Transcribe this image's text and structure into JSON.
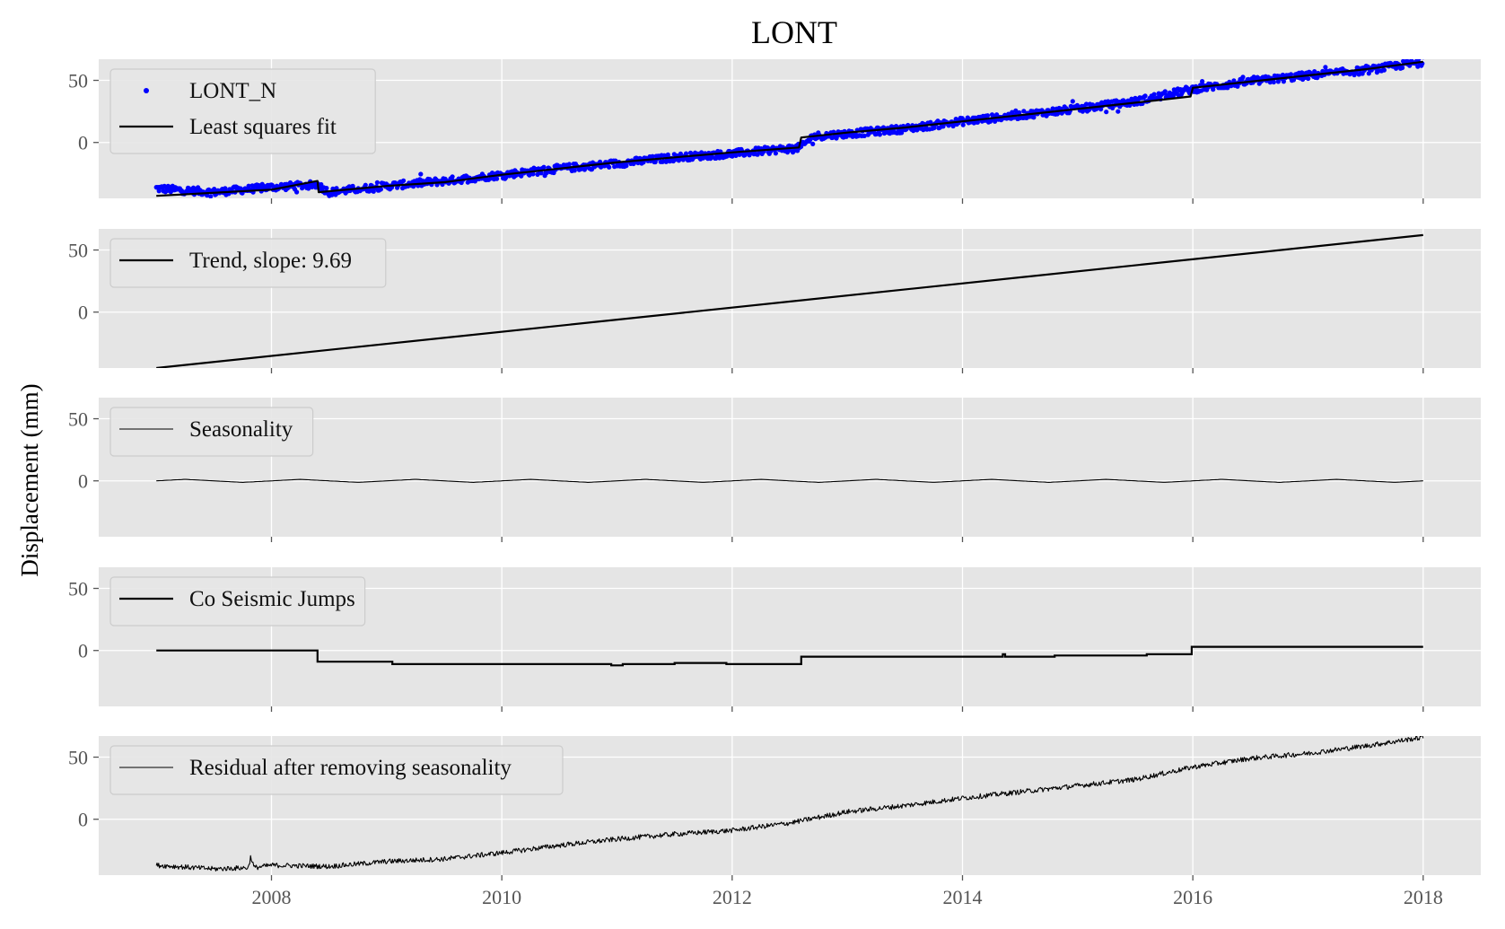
{
  "chart_data": {
    "type": "line",
    "title": "LONT",
    "ylabel": "Displacement (mm)",
    "xlim": [
      2006.5,
      2018.5
    ],
    "ylim": [
      -45,
      67
    ],
    "x_ticks": [
      2008,
      2010,
      2012,
      2014,
      2016,
      2018
    ],
    "x_tick_labels": [
      "2008",
      "2010",
      "2012",
      "2014",
      "2016",
      "2018"
    ],
    "y_ticks": [
      0,
      50
    ],
    "y_tick_labels": [
      "0",
      "50"
    ],
    "grid": true,
    "legend_position": "upper-left",
    "colors": {
      "background": "#e5e5e5",
      "grid": "#ffffff",
      "line": "#000000",
      "points": "#0000ff"
    },
    "panels": [
      {
        "legend": [
          {
            "label": "LONT_N",
            "marker": "dot",
            "color": "#0000ff"
          },
          {
            "label": "Least squares fit",
            "marker": "line",
            "color": "#000000"
          }
        ],
        "series": [
          {
            "name": "LONT_N",
            "style": "scatter",
            "color": "#0000ff",
            "x": [
              2007.0,
              2007.5,
              2008.0,
              2008.4,
              2008.5,
              2009.0,
              2009.5,
              2010.0,
              2010.5,
              2011.0,
              2011.5,
              2012.0,
              2012.6,
              2012.7,
              2013.0,
              2013.5,
              2014.0,
              2014.5,
              2015.0,
              2015.5,
              2016.0,
              2016.5,
              2017.0,
              2017.5,
              2018.0
            ],
            "y": [
              -37,
              -40,
              -36,
              -34,
              -40,
              -35,
              -31,
              -26,
              -21,
              -17,
              -12,
              -9,
              -4,
              5,
              7,
              11,
              17,
              22,
              27,
              33,
              43,
              49,
              54,
              58,
              65
            ]
          },
          {
            "name": "Least squares fit",
            "style": "line",
            "color": "#000000",
            "x": [
              2007.0,
              2008.0,
              2008.4,
              2008.41,
              2009.0,
              2009.5,
              2010.0,
              2010.5,
              2011.0,
              2011.5,
              2012.0,
              2012.58,
              2012.6,
              2013.0,
              2013.5,
              2014.0,
              2014.5,
              2015.0,
              2015.5,
              2015.98,
              2016.0,
              2016.5,
              2017.0,
              2017.5,
              2018.0
            ],
            "y": [
              -43,
              -38,
              -31,
              -40,
              -35,
              -32,
              -26,
              -21,
              -16,
              -12,
              -8,
              -4,
              4,
              8,
              12,
              17,
              22,
              27,
              32,
              37,
              44,
              49,
              54,
              59,
              65
            ]
          }
        ]
      },
      {
        "legend": [
          {
            "label": "Trend, slope: 9.69",
            "marker": "line",
            "color": "#000000"
          }
        ],
        "series": [
          {
            "name": "Trend, slope: 9.69",
            "style": "line",
            "color": "#000000",
            "x": [
              2007.0,
              2018.0
            ],
            "y": [
              -45,
              62
            ]
          }
        ]
      },
      {
        "legend": [
          {
            "label": "Seasonality",
            "marker": "thinline",
            "color": "#000000"
          }
        ],
        "series": [
          {
            "name": "Seasonality",
            "style": "line",
            "color": "#000000",
            "x": [
              2007.0,
              2007.25,
              2007.5,
              2007.75,
              2008.0,
              2008.25,
              2008.5,
              2008.75,
              2009.0,
              2009.25,
              2009.5,
              2009.75,
              2010.0,
              2010.25,
              2010.5,
              2010.75,
              2011.0,
              2011.25,
              2011.5,
              2011.75,
              2012.0,
              2012.25,
              2012.5,
              2012.75,
              2013.0,
              2013.25,
              2013.5,
              2013.75,
              2014.0,
              2014.25,
              2014.5,
              2014.75,
              2015.0,
              2015.25,
              2015.5,
              2015.75,
              2016.0,
              2016.25,
              2016.5,
              2016.75,
              2017.0,
              2017.25,
              2017.5,
              2017.75,
              2018.0
            ],
            "y": [
              0,
              1.2,
              0,
              -1.2,
              0,
              1.2,
              0,
              -1.2,
              0,
              1.2,
              0,
              -1.2,
              0,
              1.2,
              0,
              -1.2,
              0,
              1.2,
              0,
              -1.2,
              0,
              1.2,
              0,
              -1.2,
              0,
              1.2,
              0,
              -1.2,
              0,
              1.2,
              0,
              -1.2,
              0,
              1.2,
              0,
              -1.2,
              0,
              1.2,
              0,
              -1.2,
              0,
              1.2,
              0,
              -1.2,
              0
            ]
          }
        ]
      },
      {
        "legend": [
          {
            "label": "Co Seismic Jumps",
            "marker": "line",
            "color": "#000000"
          }
        ],
        "series": [
          {
            "name": "Co Seismic Jumps",
            "style": "step",
            "color": "#000000",
            "x": [
              2007.0,
              2008.4,
              2008.4,
              2009.05,
              2009.05,
              2010.95,
              2010.95,
              2011.05,
              2011.05,
              2011.5,
              2011.5,
              2011.95,
              2011.95,
              2012.6,
              2012.6,
              2014.35,
              2014.35,
              2014.37,
              2014.37,
              2014.8,
              2014.8,
              2015.6,
              2015.6,
              2015.99,
              2015.99,
              2018.0
            ],
            "y": [
              0,
              0,
              -9,
              -9,
              -11,
              -11,
              -12,
              -12,
              -11,
              -11,
              -10,
              -10,
              -11,
              -11,
              -5,
              -5,
              -3,
              -3,
              -5,
              -5,
              -4,
              -4,
              -3,
              -3,
              3,
              3
            ]
          }
        ]
      },
      {
        "legend": [
          {
            "label": "Residual after removing seasonality",
            "marker": "thinline",
            "color": "#000000"
          }
        ],
        "series": [
          {
            "name": "Residual after removing seasonality",
            "style": "line",
            "color": "#000000",
            "x": [
              2007.0,
              2007.5,
              2007.8,
              2007.82,
              2007.85,
              2008.0,
              2008.5,
              2009.0,
              2009.5,
              2010.0,
              2010.5,
              2011.0,
              2011.5,
              2012.0,
              2012.5,
              2013.0,
              2013.5,
              2014.0,
              2014.5,
              2015.0,
              2015.5,
              2016.0,
              2016.5,
              2017.0,
              2017.5,
              2018.0
            ],
            "y": [
              -37,
              -40,
              -39,
              -30,
              -39,
              -37,
              -38,
              -34,
              -32,
              -27,
              -21,
              -16,
              -12,
              -9,
              -3,
              6,
              11,
              17,
              22,
              27,
              32,
              42,
              49,
              53,
              59,
              66
            ]
          }
        ]
      }
    ]
  }
}
